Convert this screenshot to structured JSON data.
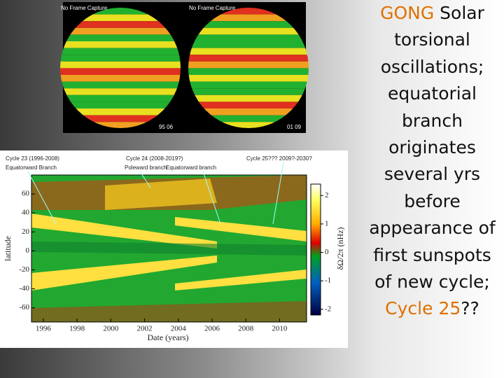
{
  "slide": {
    "text_lines": [
      [
        {
          "text": "GONG",
          "color": "#e07000"
        },
        {
          "text": " Solar",
          "color": "#111111"
        }
      ],
      [
        {
          "text": "torsional",
          "color": "#111111"
        }
      ],
      [
        {
          "text": "oscillations;",
          "color": "#111111"
        }
      ],
      [
        {
          "text": "equatorial",
          "color": "#111111"
        }
      ],
      [
        {
          "text": "branch",
          "color": "#111111"
        }
      ],
      [
        {
          "text": "originates",
          "color": "#111111"
        }
      ],
      [
        {
          "text": "several yrs",
          "color": "#111111"
        }
      ],
      [
        {
          "text": "before",
          "color": "#111111"
        }
      ],
      [
        {
          "text": "appearance of",
          "color": "#111111"
        }
      ],
      [
        {
          "text": "first sunspots",
          "color": "#111111"
        }
      ],
      [
        {
          "text": "of new cycle;",
          "color": "#111111"
        }
      ],
      [
        {
          "text": "Cycle 25",
          "color": "#e07000"
        },
        {
          "text": "??",
          "color": "#111111"
        }
      ]
    ],
    "sun_images": [
      {
        "caption": "No Frame Capture",
        "date": "95 06"
      },
      {
        "caption": "No Frame Capture",
        "date": "01 09"
      }
    ],
    "plot": {
      "annotations": [
        "Cycle 23 (1996-2008)",
        "Equatorward Branch",
        "Cycle 24 (2008-2019?)",
        "Poleward branch",
        "Equatorward branch",
        "Cycle 25??? 2009?-2030?"
      ],
      "xlabel": "Date (years)",
      "ylabel": "latitude",
      "colorbar_label": "δΩ/2π (nHz)",
      "xlim": [
        1995.3,
        2011.6
      ],
      "xticks": [
        1996,
        1998,
        2000,
        2002,
        2004,
        2006,
        2008,
        2010
      ],
      "ylim": [
        -75,
        80
      ],
      "yticks": [
        60,
        40,
        20,
        0,
        -20,
        -40,
        -60
      ],
      "colorbar_lim": [
        -2.2,
        2.4
      ],
      "colorbar_ticks": [
        2,
        1,
        0,
        -1,
        -2
      ]
    }
  }
}
